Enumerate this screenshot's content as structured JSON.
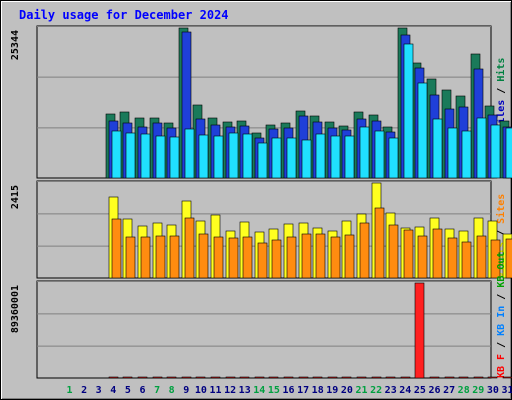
{
  "chart_data": {
    "type": "bar",
    "title": "Daily usage for December 2024",
    "days": [
      "1",
      "2",
      "3",
      "4",
      "5",
      "6",
      "7",
      "8",
      "9",
      "10",
      "11",
      "12",
      "13",
      "14",
      "15",
      "16",
      "17",
      "18",
      "19",
      "20",
      "21",
      "22",
      "23",
      "24",
      "25",
      "26",
      "27",
      "28",
      "29",
      "30",
      "31"
    ],
    "weekend_days": [
      1,
      7,
      8,
      14,
      15,
      21,
      22,
      28,
      29
    ],
    "panels": [
      {
        "max_label": "25344",
        "ymax": 25344,
        "legend": [
          {
            "text": "Pages",
            "color": "#00c0c0"
          },
          {
            "text": " / ",
            "color": "#000000"
          },
          {
            "text": "Files",
            "color": "#0000c0"
          },
          {
            "text": " / ",
            "color": "#000000"
          },
          {
            "text": "Hits",
            "color": "#008040"
          }
        ],
        "series": [
          {
            "name": "Hits",
            "color": "#1a7a5a",
            "values": [
              null,
              null,
              null,
              10800,
              11100,
              10100,
              10200,
              9300,
              25344,
              12400,
              10100,
              9500,
              9600,
              7600,
              9000,
              9300,
              11300,
              10400,
              9500,
              8800,
              11200,
              10700,
              8700,
              25300,
              19400,
              16700,
              14900,
              13900,
              21000,
              12100,
              9600
            ]
          },
          {
            "name": "Files",
            "color": "#1f3fd9",
            "values": [
              null,
              null,
              null,
              9600,
              9300,
              8700,
              9300,
              8400,
              24600,
              10000,
              9000,
              8700,
              8800,
              6800,
              8200,
              8400,
              10400,
              9400,
              8400,
              8100,
              10000,
              9600,
              7800,
              24200,
              18600,
              14100,
              11700,
              12000,
              18400,
              10600,
              8700
            ]
          },
          {
            "name": "Pages",
            "color": "#20e0ff",
            "values": [
              null,
              null,
              null,
              8000,
              7600,
              7400,
              7100,
              6900,
              8300,
              7200,
              7100,
              7600,
              7400,
              5900,
              6700,
              6700,
              6400,
              7400,
              7100,
              7100,
              8700,
              7900,
              6700,
              22700,
              16000,
              9900,
              8400,
              7900,
              10200,
              8900,
              8400
            ]
          }
        ]
      },
      {
        "max_label": "2415",
        "ymax": 2415,
        "legend": [
          {
            "text": "Visits",
            "color": "#e0e000"
          },
          {
            "text": " / ",
            "color": "#000000"
          },
          {
            "text": "Sites",
            "color": "#ff8000"
          }
        ],
        "series": [
          {
            "name": "Visits",
            "color": "#ffff20",
            "values": [
              null,
              null,
              null,
              2060,
              1500,
              1310,
              1390,
              1350,
              1960,
              1460,
              1600,
              1190,
              1430,
              1180,
              1250,
              1370,
              1400,
              1260,
              1190,
              1460,
              1630,
              2415,
              1650,
              1270,
              1290,
              1520,
              1250,
              1190,
              1520,
              1460,
              1130
            ]
          },
          {
            "name": "Sites",
            "color": "#ff8c10",
            "values": [
              null,
              null,
              null,
              1510,
              1030,
              1040,
              1070,
              1070,
              1520,
              1110,
              1040,
              1010,
              1050,
              900,
              960,
              1030,
              1130,
              1110,
              1040,
              1100,
              1400,
              1780,
              1360,
              1220,
              1060,
              1240,
              1010,
              920,
              1060,
              960,
              1000
            ]
          }
        ]
      },
      {
        "max_label": "89360001",
        "ymax": 89360001,
        "legend": [
          {
            "text": "KB F",
            "color": "#ff0000"
          },
          {
            "text": " / ",
            "color": "#000000"
          },
          {
            "text": "KB In",
            "color": "#0080ff"
          },
          {
            "text": " / ",
            "color": "#000000"
          },
          {
            "text": "KB Out",
            "color": "#00a000"
          }
        ],
        "series": [
          {
            "name": "KB F",
            "color": "#ff2020",
            "values": [
              null,
              null,
              null,
              39000,
              33500,
              34500,
              34500,
              33500,
              34500,
              29500,
              31500,
              27500,
              34500,
              28500,
              27500,
              30500,
              29500,
              20500,
              30500,
              30500,
              30500,
              36500,
              33500,
              24000,
              89360001,
              56000,
              31500,
              30000,
              30500,
              40000,
              32500
            ]
          }
        ]
      }
    ]
  }
}
